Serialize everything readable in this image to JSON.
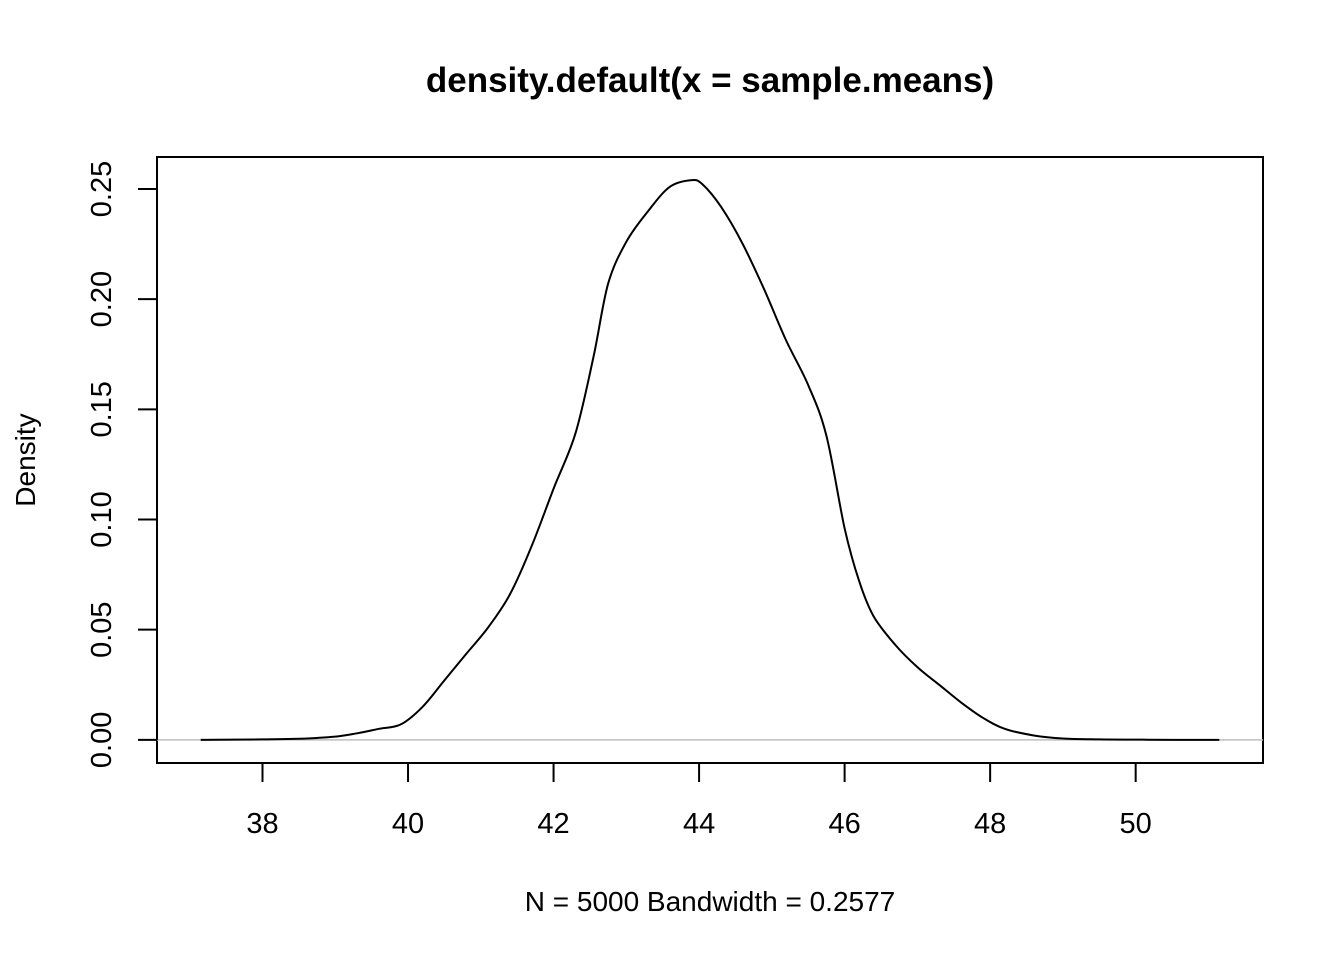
{
  "chart_data": {
    "type": "line",
    "title": "density.default(x = sample.means)",
    "xlabel": "N = 5000   Bandwidth = 0.2577",
    "ylabel": "Density",
    "xlim": [
      36.55,
      51.75
    ],
    "ylim": [
      -0.0105,
      0.2645
    ],
    "x_ticks": [
      38,
      40,
      42,
      44,
      46,
      48,
      50
    ],
    "y_ticks": [
      0.0,
      0.05,
      0.1,
      0.15,
      0.2,
      0.25
    ],
    "x_tick_labels": [
      "38",
      "40",
      "42",
      "44",
      "46",
      "48",
      "50"
    ],
    "y_tick_labels": [
      "0.00",
      "0.05",
      "0.10",
      "0.15",
      "0.20",
      "0.25"
    ],
    "grid": false,
    "baseline": 0,
    "colors": {
      "line": "#000000",
      "baseline": "#bebebe",
      "frame": "#000000"
    },
    "series": [
      {
        "x": [
          37.15,
          38.0,
          38.5,
          39.0,
          39.3,
          39.6,
          39.9,
          40.2,
          40.5,
          40.8,
          41.1,
          41.4,
          41.7,
          42.0,
          42.3,
          42.55,
          42.75,
          43.0,
          43.3,
          43.6,
          43.9,
          44.05,
          44.3,
          44.6,
          44.9,
          45.2,
          45.5,
          45.75,
          46.0,
          46.2,
          46.4,
          46.7,
          47.0,
          47.3,
          47.6,
          47.9,
          48.2,
          48.6,
          49.0,
          49.5,
          50.0,
          50.5,
          51.15
        ],
        "y": [
          0.0,
          0.0002,
          0.0005,
          0.0015,
          0.003,
          0.005,
          0.007,
          0.015,
          0.027,
          0.039,
          0.051,
          0.066,
          0.088,
          0.114,
          0.139,
          0.174,
          0.207,
          0.226,
          0.24,
          0.251,
          0.254,
          0.252,
          0.242,
          0.225,
          0.204,
          0.181,
          0.161,
          0.138,
          0.096,
          0.072,
          0.056,
          0.043,
          0.033,
          0.025,
          0.017,
          0.01,
          0.005,
          0.002,
          0.0006,
          0.0002,
          0.0001,
          0.0,
          0.0
        ]
      }
    ]
  }
}
